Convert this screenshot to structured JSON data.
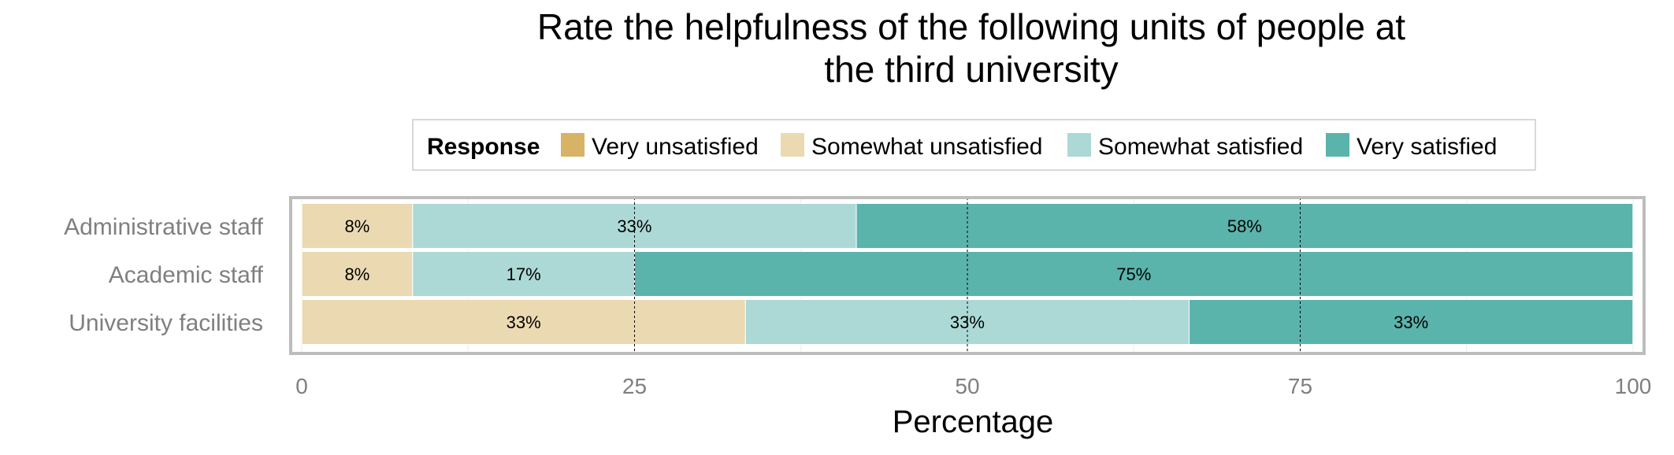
{
  "chart_data": {
    "type": "bar",
    "orientation": "horizontal",
    "stacked": true,
    "title": "Rate the helpfulness of the following units of people at the third university",
    "title_lines": [
      "Rate the helpfulness of the following units of people at",
      "the third university"
    ],
    "xlabel": "Percentage",
    "ylabel": "",
    "xlim": [
      0,
      100
    ],
    "xticks": [
      0,
      25,
      50,
      75,
      100
    ],
    "xtick_labels": [
      "0",
      "25",
      "50",
      "75",
      "100"
    ],
    "grid": true,
    "reference_lines": [
      25,
      50,
      75
    ],
    "legend": {
      "title": "Response",
      "position": "top",
      "entries": [
        "Very unsatisfied",
        "Somewhat unsatisfied",
        "Somewhat satisfied",
        "Very satisfied"
      ]
    },
    "categories": [
      "Administrative staff",
      "Academic staff",
      "University facilities"
    ],
    "series": [
      {
        "name": "Very unsatisfied",
        "color": "#d8b365",
        "values": [
          0,
          0,
          0
        ],
        "labels": [
          "",
          "",
          ""
        ]
      },
      {
        "name": "Somewhat unsatisfied",
        "color": "#ebd9b2",
        "values": [
          8.33,
          8.33,
          33.33
        ],
        "labels": [
          "8%",
          "8%",
          "33%"
        ]
      },
      {
        "name": "Somewhat satisfied",
        "color": "#acd9d5",
        "values": [
          33.33,
          16.67,
          33.33
        ],
        "labels": [
          "33%",
          "17%",
          "33%"
        ]
      },
      {
        "name": "Very satisfied",
        "color": "#5ab4ac",
        "values": [
          58.33,
          75,
          33.33
        ],
        "labels": [
          "58%",
          "75%",
          "33%"
        ]
      }
    ]
  }
}
